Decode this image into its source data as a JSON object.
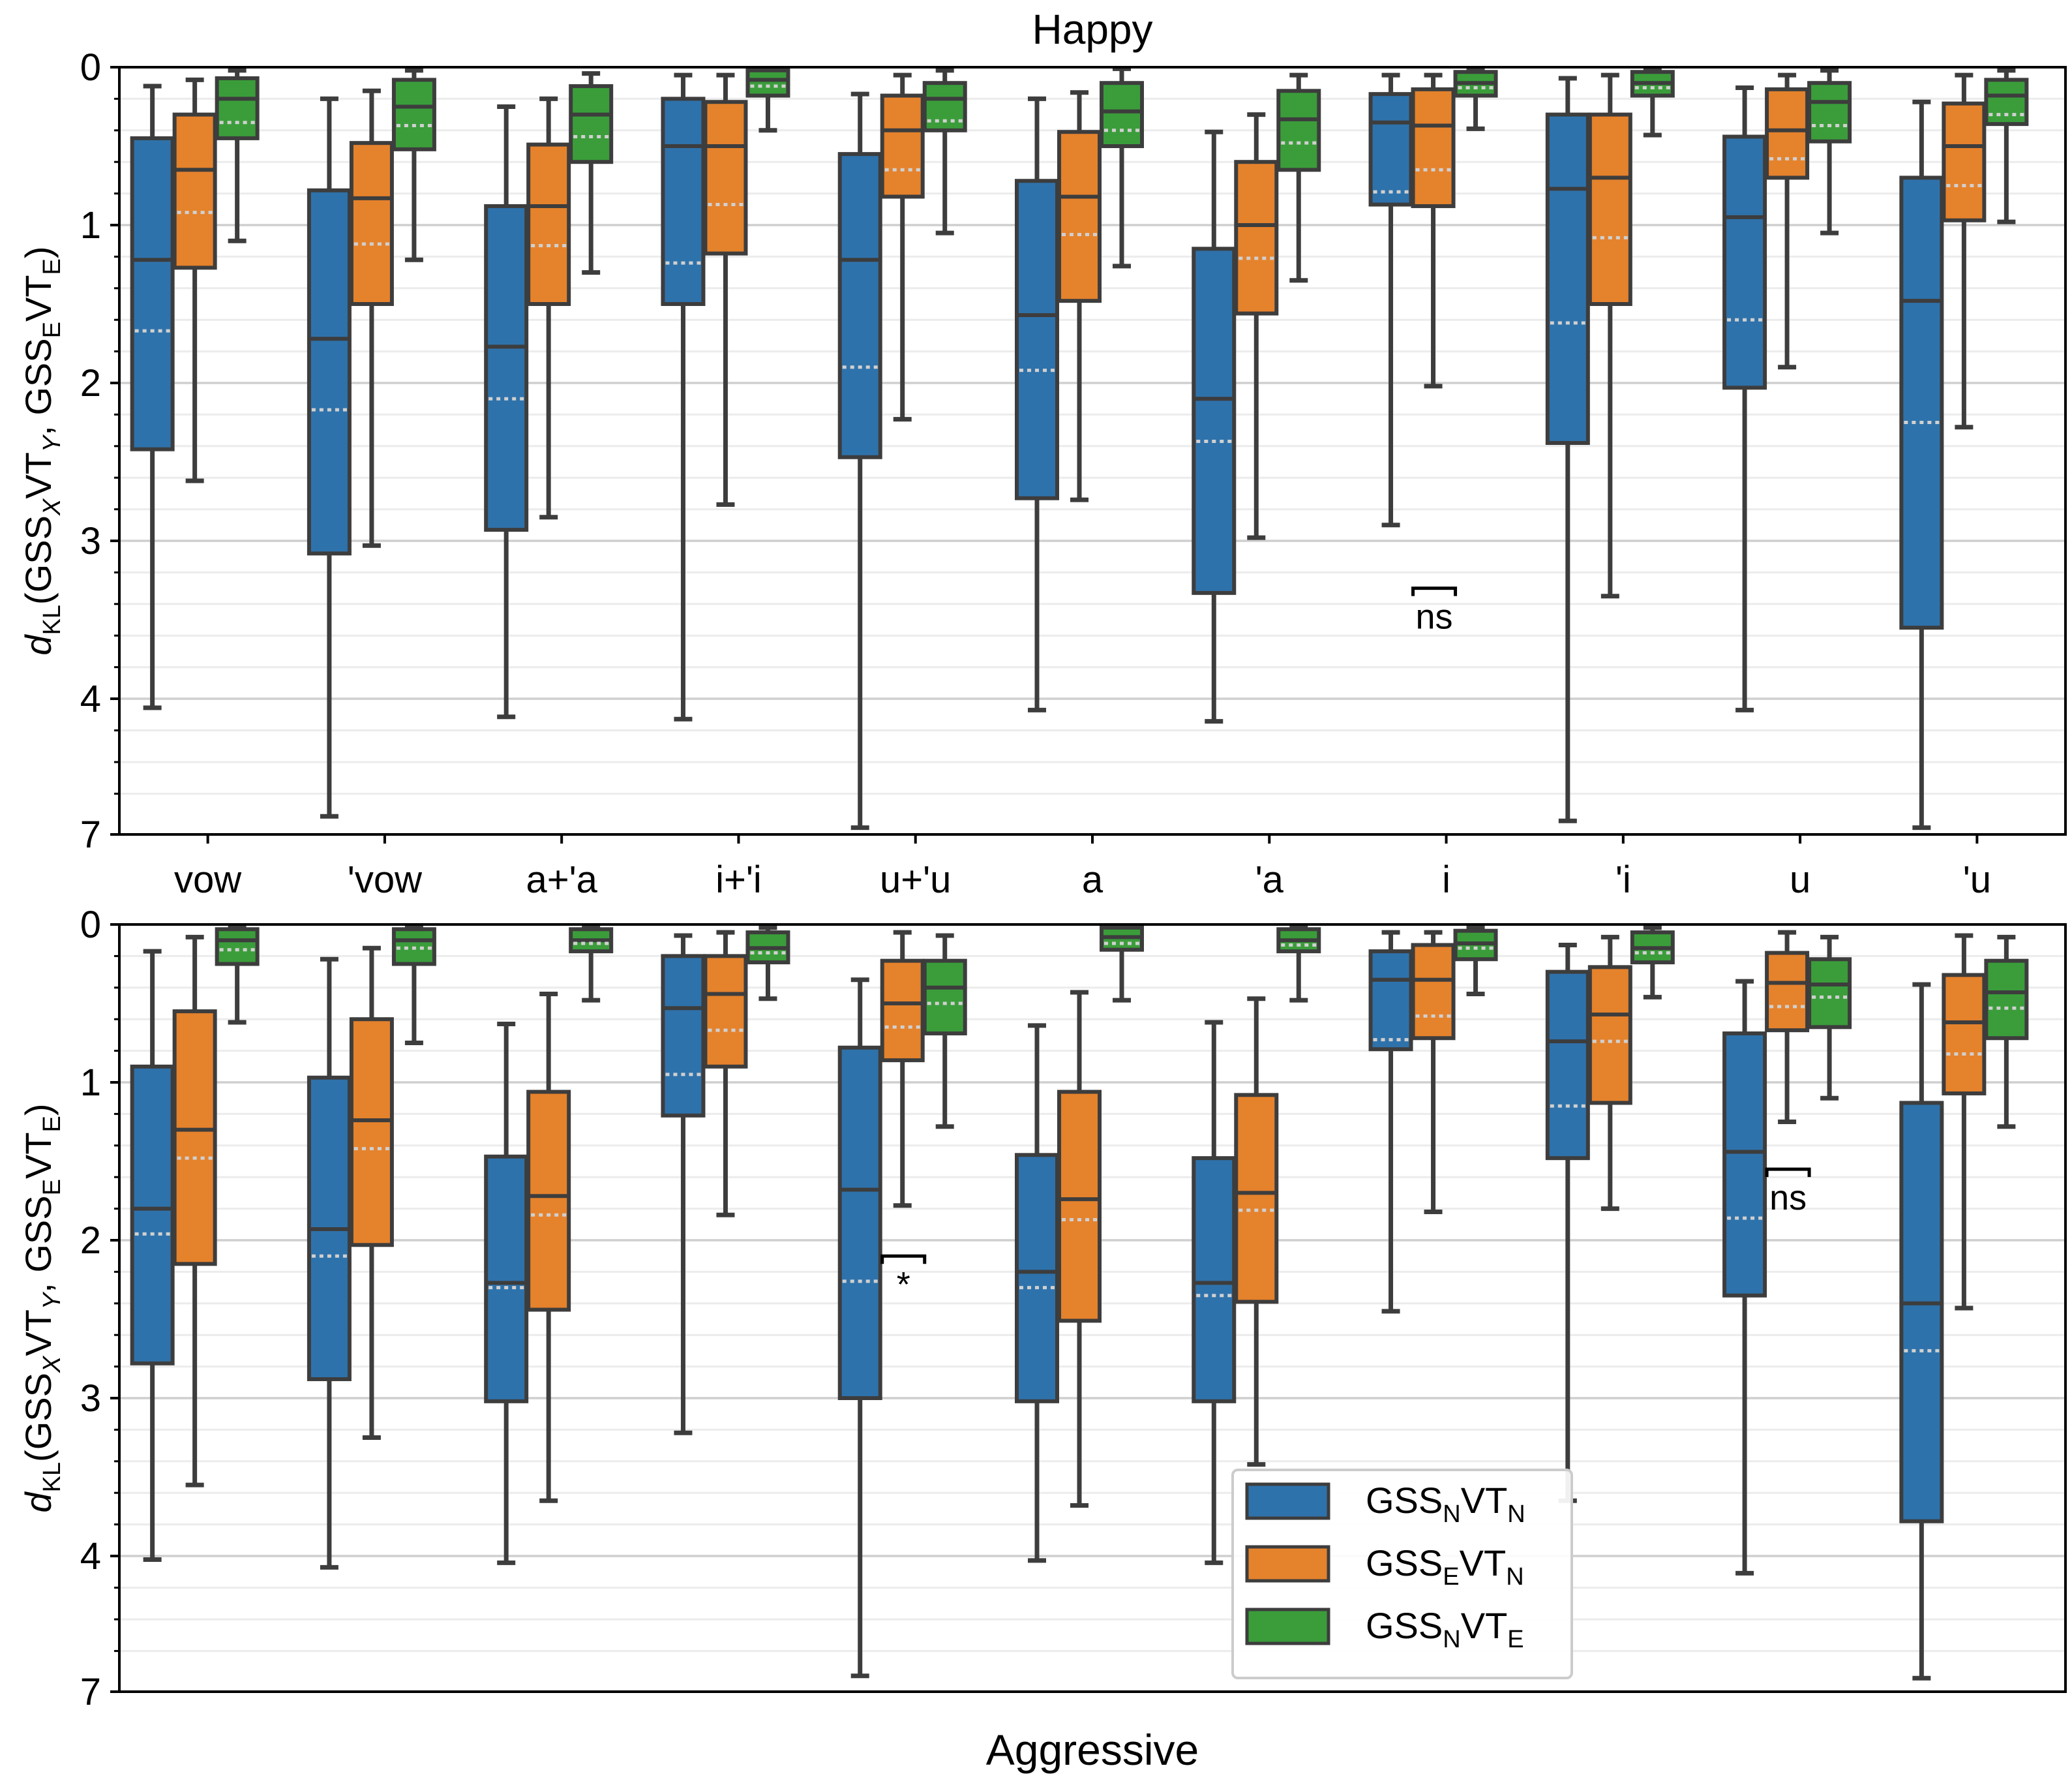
{
  "figure": {
    "xlabel": "Aggressive",
    "ylabel_main": "d",
    "ylabel_sub": "KL",
    "ylabel_rest": "(GSS",
    "ylabel_x": "X",
    "ylabel_vt": "VT",
    "ylabel_y": "Y",
    "ylabel_sep": ", GSS",
    "ylabel_e": "E",
    "ylabel_vt2": "VT",
    "ylabel_e2": "E",
    "ylabel_close": ")",
    "categories": [
      "vow",
      "'vow",
      "a+'a",
      "i+'i",
      "u+'u",
      "a",
      "'a",
      "i",
      "'i",
      "u",
      "'u"
    ],
    "yticks": [
      "0",
      "1",
      "2",
      "3",
      "4",
      "7"
    ],
    "colors": {
      "blue": "#2e72ab",
      "orange": "#e5822c",
      "green": "#3a9d3a",
      "edge": "#3d3d3d",
      "mean": "#d0d0d0"
    }
  },
  "legend": {
    "items": [
      {
        "main": "GSS",
        "sub1": "N",
        "mid": "VT",
        "sub2": "N",
        "color": "#2e72ab"
      },
      {
        "main": "GSS",
        "sub1": "E",
        "mid": "VT",
        "sub2": "N",
        "color": "#e5822c"
      },
      {
        "main": "GSS",
        "sub1": "N",
        "mid": "VT",
        "sub2": "E",
        "color": "#3a9d3a"
      }
    ]
  },
  "chart_data": [
    {
      "type": "box",
      "title": "Happy",
      "ylabel": "dKL(GSSXVTY, GSSEVTE)",
      "ylim": [
        0,
        7
      ],
      "y_inverted": true,
      "categories": [
        "vow",
        "'vow",
        "a+'a",
        "i+'i",
        "u+'u",
        "a",
        "'a",
        "i",
        "'i",
        "u",
        "'u"
      ],
      "series": [
        {
          "name": "GSSNVTN",
          "color": "#2e72ab",
          "boxes": [
            [
              0.12,
              0.45,
              1.22,
              2.42,
              4.2,
              1.67
            ],
            [
              0.2,
              0.78,
              1.72,
              3.08,
              6.6,
              2.17
            ],
            [
              0.25,
              0.88,
              1.77,
              2.93,
              4.4,
              2.1
            ],
            [
              0.05,
              0.2,
              0.5,
              1.5,
              4.45,
              1.24
            ],
            [
              0.17,
              0.55,
              1.22,
              2.47,
              6.85,
              1.9
            ],
            [
              0.2,
              0.72,
              1.57,
              2.73,
              4.25,
              1.92
            ],
            [
              0.41,
              1.15,
              2.1,
              3.33,
              4.5,
              2.37
            ],
            [
              0.05,
              0.17,
              0.35,
              0.87,
              2.9,
              0.79
            ],
            [
              0.07,
              0.3,
              0.77,
              2.38,
              6.7,
              1.62
            ],
            [
              0.13,
              0.44,
              0.95,
              2.03,
              4.25,
              1.6
            ],
            [
              0.22,
              0.7,
              1.48,
              3.55,
              6.85,
              2.25
            ]
          ]
        },
        {
          "name": "GSSEVTN",
          "color": "#e5822c",
          "boxes": [
            [
              0.08,
              0.3,
              0.65,
              1.27,
              2.62,
              0.92
            ],
            [
              0.15,
              0.48,
              0.83,
              1.5,
              3.03,
              1.12
            ],
            [
              0.2,
              0.49,
              0.88,
              1.5,
              2.85,
              1.13
            ],
            [
              0.05,
              0.22,
              0.5,
              1.18,
              2.77,
              0.87
            ],
            [
              0.05,
              0.18,
              0.4,
              0.82,
              2.23,
              0.65
            ],
            [
              0.16,
              0.41,
              0.82,
              1.48,
              2.74,
              1.06
            ],
            [
              0.3,
              0.6,
              1.0,
              1.56,
              2.98,
              1.21
            ],
            [
              0.05,
              0.14,
              0.37,
              0.88,
              2.02,
              0.65
            ],
            [
              0.05,
              0.3,
              0.7,
              1.5,
              3.35,
              1.08
            ],
            [
              0.05,
              0.14,
              0.4,
              0.7,
              1.9,
              0.58
            ],
            [
              0.05,
              0.23,
              0.5,
              0.97,
              2.28,
              0.75
            ]
          ]
        },
        {
          "name": "GSSNVTE",
          "color": "#3a9d3a",
          "boxes": [
            [
              0.02,
              0.07,
              0.2,
              0.45,
              1.1,
              0.35
            ],
            [
              0.02,
              0.08,
              0.25,
              0.52,
              1.22,
              0.37
            ],
            [
              0.04,
              0.12,
              0.3,
              0.6,
              1.3,
              0.44
            ],
            [
              0.01,
              0.02,
              0.08,
              0.18,
              0.4,
              0.12
            ],
            [
              0.02,
              0.1,
              0.2,
              0.4,
              1.05,
              0.34
            ],
            [
              0.01,
              0.1,
              0.28,
              0.5,
              1.26,
              0.4
            ],
            [
              0.05,
              0.15,
              0.33,
              0.65,
              1.35,
              0.48
            ],
            [
              0.01,
              0.03,
              0.1,
              0.18,
              0.39,
              0.13
            ],
            [
              0.01,
              0.03,
              0.1,
              0.18,
              0.43,
              0.13
            ],
            [
              0.02,
              0.1,
              0.22,
              0.47,
              1.05,
              0.37
            ],
            [
              0.02,
              0.08,
              0.18,
              0.36,
              0.98,
              0.3
            ]
          ]
        }
      ],
      "annotations": [
        {
          "text": "ns",
          "category": "i",
          "y": 3.3
        }
      ]
    },
    {
      "type": "box",
      "title": "",
      "xlabel": "Aggressive",
      "ylabel": "dKL(GSSXVTY, GSSEVTE)",
      "ylim": [
        0,
        7
      ],
      "y_inverted": true,
      "categories": [
        "vow",
        "'vow",
        "a+'a",
        "i+'i",
        "u+'u",
        "a",
        "'a",
        "i",
        "'i",
        "u",
        "'u"
      ],
      "series": [
        {
          "name": "GSSNVTN",
          "color": "#2e72ab",
          "boxes": [
            [
              0.17,
              0.9,
              1.8,
              2.78,
              4.08,
              1.96
            ],
            [
              0.22,
              0.97,
              1.93,
              2.88,
              4.25,
              2.1
            ],
            [
              0.63,
              1.47,
              2.27,
              3.02,
              4.15,
              2.3
            ],
            [
              0.07,
              0.2,
              0.53,
              1.21,
              3.22,
              0.95
            ],
            [
              0.35,
              0.78,
              1.68,
              3.0,
              6.65,
              2.26
            ],
            [
              0.64,
              1.46,
              2.2,
              3.02,
              4.1,
              2.3
            ],
            [
              0.62,
              1.48,
              2.27,
              3.02,
              4.15,
              2.35
            ],
            [
              0.05,
              0.17,
              0.35,
              0.79,
              2.45,
              0.73
            ],
            [
              0.13,
              0.3,
              0.74,
              1.48,
              3.65,
              1.15
            ],
            [
              0.36,
              0.69,
              1.44,
              2.35,
              4.38,
              1.86
            ],
            [
              0.38,
              1.13,
              2.4,
              3.78,
              6.7,
              2.7
            ]
          ]
        },
        {
          "name": "GSSEVTN",
          "color": "#e5822c",
          "boxes": [
            [
              0.08,
              0.55,
              1.3,
              2.15,
              3.55,
              1.48
            ],
            [
              0.15,
              0.6,
              1.24,
              2.03,
              3.25,
              1.42
            ],
            [
              0.44,
              1.06,
              1.72,
              2.44,
              3.65,
              1.84
            ],
            [
              0.05,
              0.2,
              0.44,
              0.9,
              1.84,
              0.67
            ],
            [
              0.05,
              0.23,
              0.5,
              0.86,
              1.78,
              0.65
            ],
            [
              0.43,
              1.06,
              1.74,
              2.51,
              3.68,
              1.87
            ],
            [
              0.47,
              1.08,
              1.7,
              2.39,
              3.42,
              1.81
            ],
            [
              0.05,
              0.13,
              0.35,
              0.72,
              1.82,
              0.58
            ],
            [
              0.08,
              0.27,
              0.57,
              1.13,
              1.8,
              0.74
            ],
            [
              0.05,
              0.18,
              0.37,
              0.67,
              1.25,
              0.52
            ],
            [
              0.07,
              0.32,
              0.62,
              1.07,
              2.43,
              0.82
            ]
          ]
        },
        {
          "name": "GSSNVTE",
          "color": "#3a9d3a",
          "boxes": [
            [
              0.02,
              0.03,
              0.1,
              0.25,
              0.62,
              0.16
            ],
            [
              0.02,
              0.03,
              0.1,
              0.25,
              0.75,
              0.15
            ],
            [
              0.02,
              0.03,
              0.1,
              0.17,
              0.48,
              0.12
            ],
            [
              0.02,
              0.05,
              0.15,
              0.24,
              0.47,
              0.18
            ],
            [
              0.07,
              0.23,
              0.4,
              0.69,
              1.28,
              0.5
            ],
            [
              0.02,
              0.02,
              0.08,
              0.16,
              0.48,
              0.12
            ],
            [
              0.02,
              0.03,
              0.1,
              0.17,
              0.48,
              0.13
            ],
            [
              0.02,
              0.04,
              0.12,
              0.22,
              0.44,
              0.15
            ],
            [
              0.02,
              0.05,
              0.15,
              0.24,
              0.46,
              0.18
            ],
            [
              0.08,
              0.22,
              0.38,
              0.65,
              1.1,
              0.46
            ],
            [
              0.08,
              0.23,
              0.43,
              0.72,
              1.28,
              0.53
            ]
          ]
        }
      ],
      "annotations": [
        {
          "text": "*",
          "category": "u+'u",
          "y": 2.1
        },
        {
          "text": "ns",
          "category": "u",
          "y": 1.55
        }
      ]
    }
  ]
}
